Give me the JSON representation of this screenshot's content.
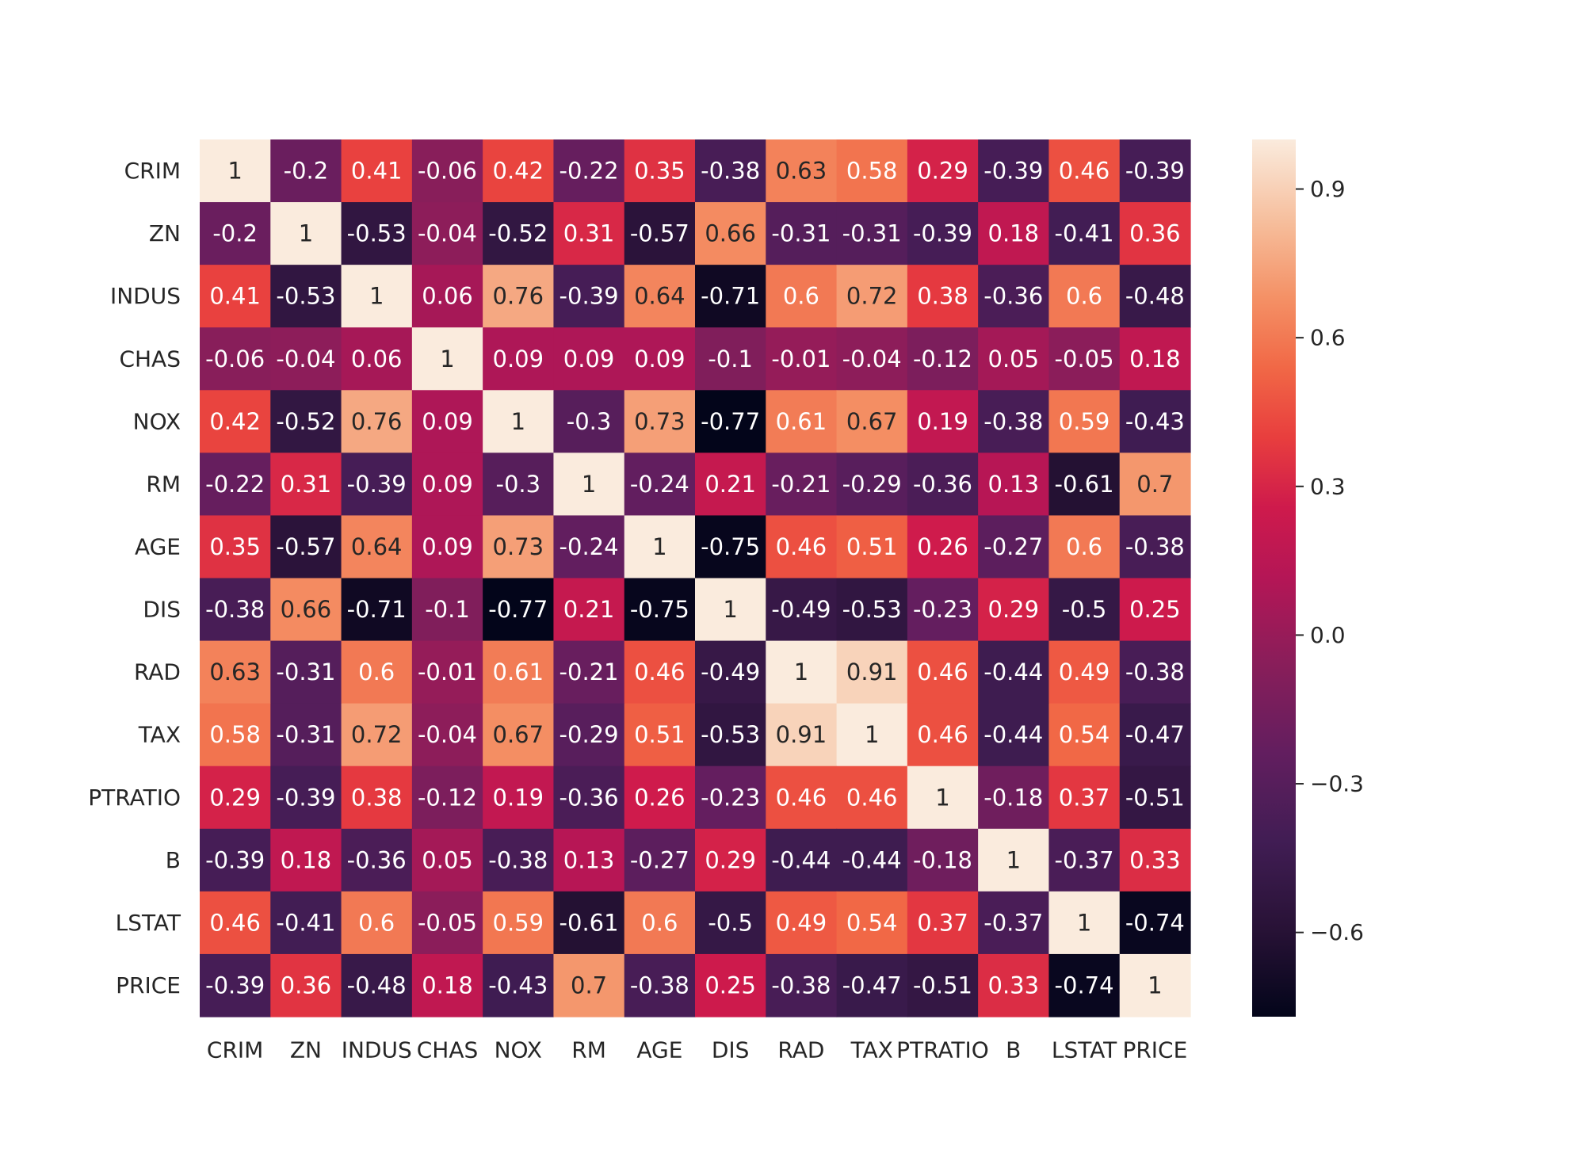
{
  "chart_data": {
    "type": "heatmap",
    "colormap": "rocket",
    "annotated": true,
    "rows": [
      "CRIM",
      "ZN",
      "INDUS",
      "CHAS",
      "NOX",
      "RM",
      "AGE",
      "DIS",
      "RAD",
      "TAX",
      "PTRATIO",
      "B",
      "LSTAT",
      "PRICE"
    ],
    "columns": [
      "CRIM",
      "ZN",
      "INDUS",
      "CHAS",
      "NOX",
      "RM",
      "AGE",
      "DIS",
      "RAD",
      "TAX",
      "PTRATIO",
      "B",
      "LSTAT",
      "PRICE"
    ],
    "values": [
      [
        1,
        -0.2,
        0.41,
        -0.06,
        0.42,
        -0.22,
        0.35,
        -0.38,
        0.63,
        0.58,
        0.29,
        -0.39,
        0.46,
        -0.39
      ],
      [
        -0.2,
        1,
        -0.53,
        -0.04,
        -0.52,
        0.31,
        -0.57,
        0.66,
        -0.31,
        -0.31,
        -0.39,
        0.18,
        -0.41,
        0.36
      ],
      [
        0.41,
        -0.53,
        1,
        0.06,
        0.76,
        -0.39,
        0.64,
        -0.71,
        0.6,
        0.72,
        0.38,
        -0.36,
        0.6,
        -0.48
      ],
      [
        -0.06,
        -0.04,
        0.06,
        1,
        0.09,
        0.09,
        0.09,
        -0.1,
        -0.01,
        -0.04,
        -0.12,
        0.05,
        -0.05,
        0.18
      ],
      [
        0.42,
        -0.52,
        0.76,
        0.09,
        1,
        -0.3,
        0.73,
        -0.77,
        0.61,
        0.67,
        0.19,
        -0.38,
        0.59,
        -0.43
      ],
      [
        -0.22,
        0.31,
        -0.39,
        0.09,
        -0.3,
        1,
        -0.24,
        0.21,
        -0.21,
        -0.29,
        -0.36,
        0.13,
        -0.61,
        0.7
      ],
      [
        0.35,
        -0.57,
        0.64,
        0.09,
        0.73,
        -0.24,
        1,
        -0.75,
        0.46,
        0.51,
        0.26,
        -0.27,
        0.6,
        -0.38
      ],
      [
        -0.38,
        0.66,
        -0.71,
        -0.1,
        -0.77,
        0.21,
        -0.75,
        1,
        -0.49,
        -0.53,
        -0.23,
        0.29,
        -0.5,
        0.25
      ],
      [
        0.63,
        -0.31,
        0.6,
        -0.01,
        0.61,
        -0.21,
        0.46,
        -0.49,
        1,
        0.91,
        0.46,
        -0.44,
        0.49,
        -0.38
      ],
      [
        0.58,
        -0.31,
        0.72,
        -0.04,
        0.67,
        -0.29,
        0.51,
        -0.53,
        0.91,
        1,
        0.46,
        -0.44,
        0.54,
        -0.47
      ],
      [
        0.29,
        -0.39,
        0.38,
        -0.12,
        0.19,
        -0.36,
        0.26,
        -0.23,
        0.46,
        0.46,
        1,
        -0.18,
        0.37,
        -0.51
      ],
      [
        -0.39,
        0.18,
        -0.36,
        0.05,
        -0.38,
        0.13,
        -0.27,
        0.29,
        -0.44,
        -0.44,
        -0.18,
        1,
        -0.37,
        0.33
      ],
      [
        0.46,
        -0.41,
        0.6,
        -0.05,
        0.59,
        -0.61,
        0.6,
        -0.5,
        0.49,
        0.54,
        0.37,
        -0.37,
        1,
        -0.74
      ],
      [
        -0.39,
        0.36,
        -0.48,
        0.18,
        -0.43,
        0.7,
        -0.38,
        0.25,
        -0.38,
        -0.47,
        -0.51,
        0.33,
        -0.74,
        1
      ]
    ],
    "vmin": -0.77,
    "vmax": 1,
    "colorbar": {
      "ticks": [
        0.9,
        0.6,
        0.3,
        0.0,
        -0.3,
        -0.6
      ],
      "tick_labels": [
        "0.9",
        "0.6",
        "0.3",
        "0.0",
        "−0.3",
        "−0.6"
      ]
    },
    "title": "",
    "xlabel": "",
    "ylabel": "",
    "legend": "colorbar-right",
    "grid": false
  }
}
